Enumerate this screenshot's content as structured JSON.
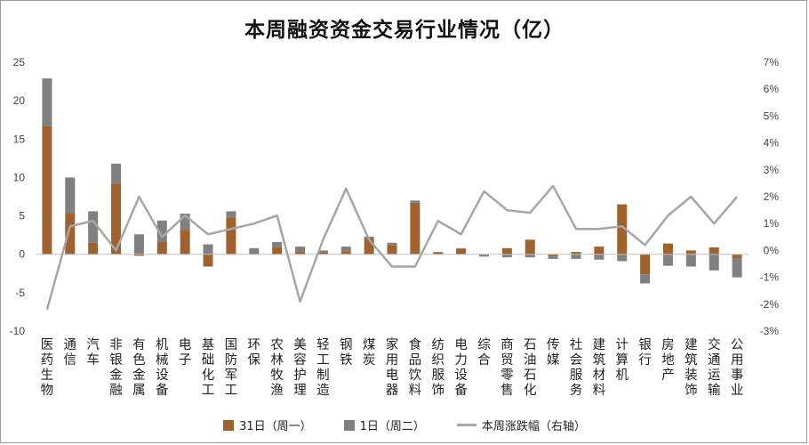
{
  "chart_data": {
    "type": "bar",
    "title": "本周融资资金交易行业情况（亿）",
    "categories": [
      "医药生物",
      "通信",
      "汽车",
      "非银金融",
      "有色金属",
      "机械设备",
      "电子",
      "基础化工",
      "国防军工",
      "环保",
      "农林牧渔",
      "美容护理",
      "轻工制造",
      "钢铁",
      "煤炭",
      "家用电器",
      "食品饮料",
      "纺织服饰",
      "电力设备",
      "综合",
      "商贸零售",
      "石油石化",
      "传媒",
      "社会服务",
      "建筑材料",
      "计算机",
      "银行",
      "房地产",
      "建筑装饰",
      "交通运输",
      "公用事业"
    ],
    "series": [
      {
        "name": "31日（周一）",
        "color": "#a0622d",
        "values": [
          16.7,
          5.4,
          1.5,
          9.2,
          -0.2,
          1.6,
          3.2,
          -1.6,
          4.8,
          0.0,
          0.9,
          0.4,
          0.2,
          0.4,
          2.0,
          1.2,
          6.7,
          0.2,
          0.7,
          -0.1,
          0.8,
          1.9,
          -0.3,
          0.3,
          1.0,
          6.5,
          -2.6,
          1.4,
          0.5,
          0.9,
          -0.5
        ]
      },
      {
        "name": "1日（周二）",
        "color": "#808080",
        "values": [
          6.2,
          4.6,
          4.1,
          2.6,
          2.6,
          2.8,
          2.1,
          1.3,
          0.8,
          0.8,
          0.7,
          0.6,
          0.3,
          0.6,
          0.3,
          0.3,
          0.3,
          0.1,
          0.1,
          -0.2,
          -0.4,
          -0.4,
          -0.3,
          -0.6,
          -0.7,
          -0.9,
          -1.2,
          -1.5,
          -1.6,
          -2.1,
          -2.5
        ]
      },
      {
        "name": "本周涨跌幅（右轴）",
        "color": "#a6a6a6",
        "values": [
          -2.2,
          0.9,
          1.1,
          0.0,
          2.0,
          0.5,
          1.3,
          0.6,
          0.8,
          1.0,
          1.3,
          -1.9,
          0.4,
          2.3,
          0.4,
          -0.6,
          -0.6,
          1.1,
          0.6,
          2.2,
          1.5,
          1.4,
          2.4,
          0.8,
          0.8,
          0.9,
          0.2,
          1.3,
          2.0,
          1.0,
          2.0
        ]
      }
    ],
    "ylim": [
      -10,
      25
    ],
    "yticks": [
      "-10",
      "-5",
      "0",
      "5",
      "10",
      "15",
      "20",
      "25"
    ],
    "y2lim": [
      -3,
      7
    ],
    "y2ticks": [
      "-3%",
      "-2%",
      "-1%",
      "0%",
      "1%",
      "2%",
      "3%",
      "4%",
      "5%",
      "6%",
      "7%"
    ],
    "stacked": true,
    "grid": false,
    "legend_position": "bottom"
  }
}
